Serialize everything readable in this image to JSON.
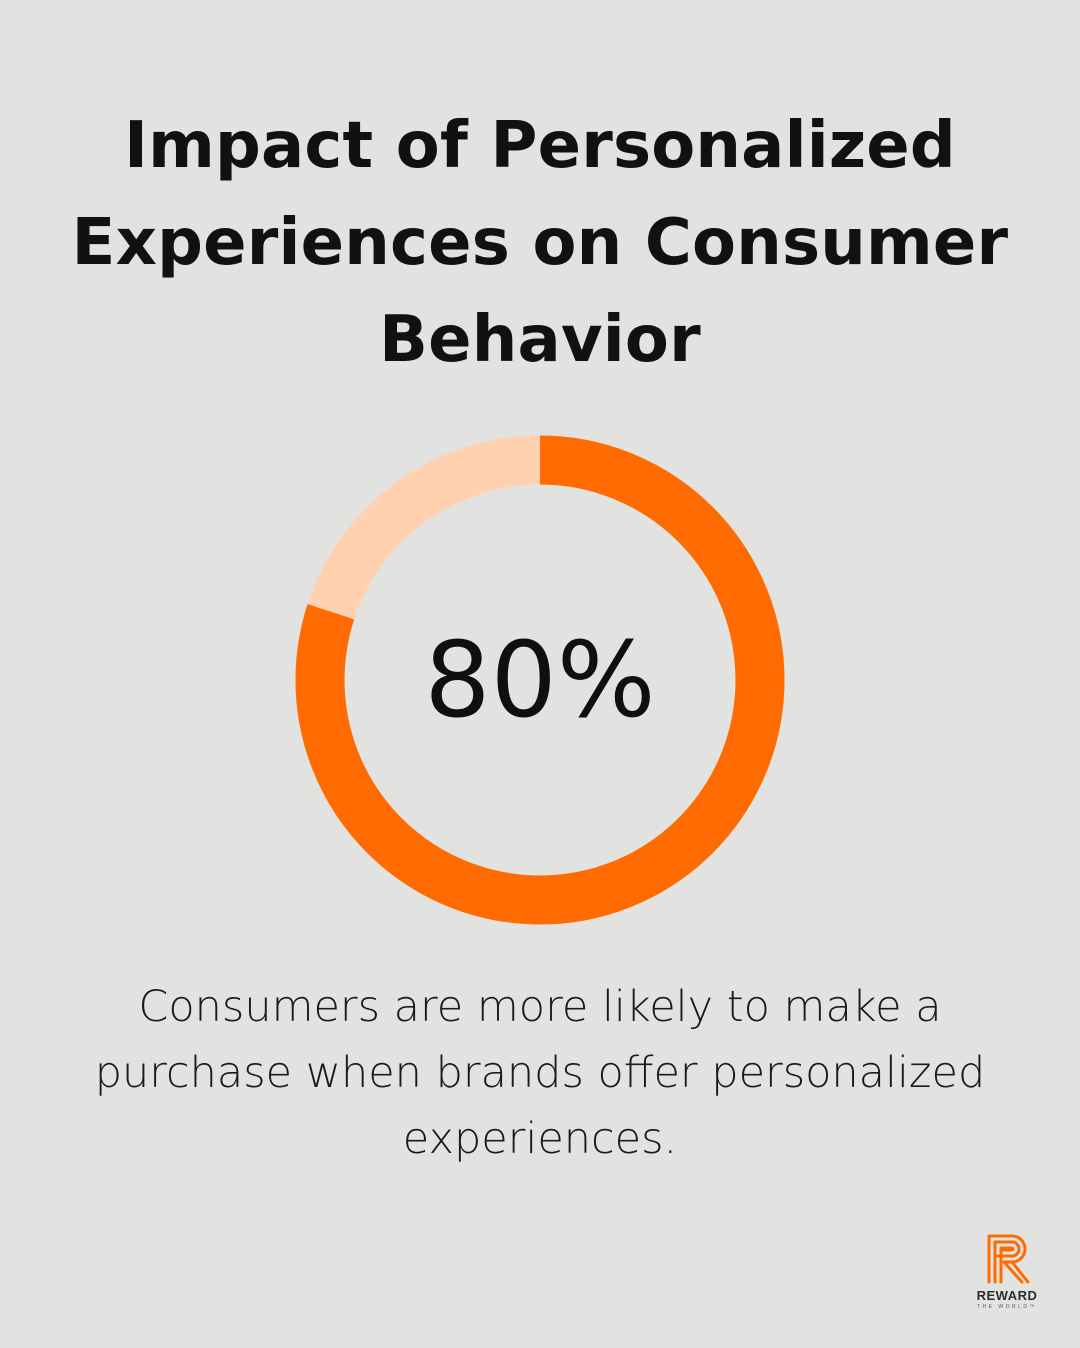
{
  "title": "Impact of Personalized Experiences on Consumer Behavior",
  "chart_data": {
    "type": "donut",
    "value": 80,
    "remainder": 20,
    "center_label": "80%",
    "colors": {
      "filled": "#ff6b00",
      "remainder": "#ffd1b0"
    }
  },
  "caption": "Consumers are more likely to make a purchase when brands offer personalized experiences.",
  "logo": {
    "word": "REWARD",
    "sub": "THE WORLD™",
    "icon": "r-logo-icon",
    "color": "#ff6b00"
  }
}
